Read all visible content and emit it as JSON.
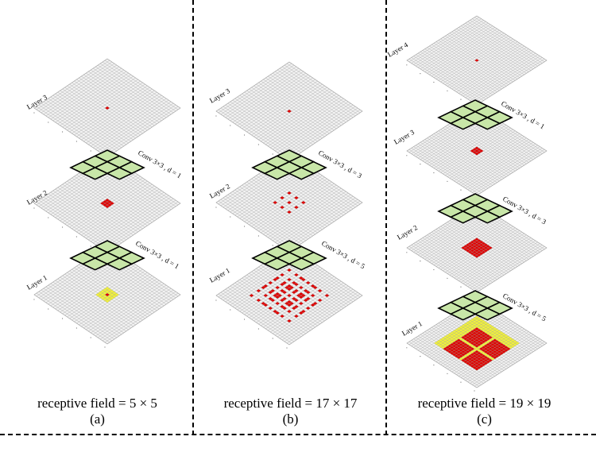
{
  "panels": [
    {
      "id": "a",
      "sublabel": "(a)",
      "receptive_field": "receptive field = 5 × 5",
      "layers": [
        {
          "label": "Layer 3",
          "red": [
            [
              15,
              15
            ]
          ],
          "yellow": []
        },
        {
          "label": "Layer 2",
          "red": [
            [
              14,
              14
            ],
            [
              14,
              15
            ],
            [
              14,
              16
            ],
            [
              15,
              14
            ],
            [
              15,
              15
            ],
            [
              15,
              16
            ],
            [
              16,
              14
            ],
            [
              16,
              15
            ],
            [
              16,
              16
            ]
          ],
          "yellow": []
        },
        {
          "label": "Layer 1",
          "red": [
            [
              15,
              15
            ]
          ],
          "yellow_range": [
            13,
            17
          ]
        }
      ],
      "convs": [
        {
          "label": "Conv 3×3 , d = 1"
        },
        {
          "label": "Conv 3×3 , d = 1"
        }
      ]
    },
    {
      "id": "b",
      "sublabel": "(b)",
      "receptive_field": "receptive field = 17 × 17",
      "layers": [
        {
          "label": "Layer 3",
          "red": [
            [
              15,
              15
            ]
          ]
        },
        {
          "label": "Layer 2",
          "pattern": {
            "offsets": [
              -3,
              0,
              3
            ]
          }
        },
        {
          "label": "Layer 1",
          "pattern": {
            "offsets": [
              -8,
              -5,
              -3,
              -2,
              0,
              2,
              3,
              5,
              8
            ]
          }
        }
      ],
      "convs": [
        {
          "label": "Conv 3×3 , d = 3"
        },
        {
          "label": "Conv 3×3 , d = 5"
        }
      ]
    },
    {
      "id": "c",
      "sublabel": "(c)",
      "receptive_field": "receptive field = 19 × 19",
      "layers": [
        {
          "label": "Layer 4",
          "red": [
            [
              15,
              15
            ]
          ]
        },
        {
          "label": "Layer 3",
          "red_range": [
            14,
            16
          ]
        },
        {
          "label": "Layer 2",
          "red_range": [
            12,
            18
          ]
        },
        {
          "label": "Layer 1",
          "yellow_range": [
            6,
            24
          ],
          "red_blocks": [
            [
              7,
              7,
              [
                -5,
                3
              ]
            ],
            [
              7,
              7,
              [
                3,
                -5
              ]
            ],
            [
              7,
              7,
              [
                -5,
                -5
              ]
            ],
            [
              7,
              7,
              [
                3,
                3
              ]
            ]
          ]
        }
      ],
      "convs": [
        {
          "label": "Conv 3×3 , d = 1"
        },
        {
          "label": "Conv 3×3 , d = 3"
        },
        {
          "label": "Conv 3×3 , d = 5"
        }
      ]
    }
  ],
  "colors": {
    "grid_fill": "#f2f2f2",
    "grid_line": "#9a9a9a",
    "red": "#e00000",
    "yellow": "#f2f23a",
    "kernel_fill": "#c8e6a8",
    "kernel_line": "#000000"
  }
}
